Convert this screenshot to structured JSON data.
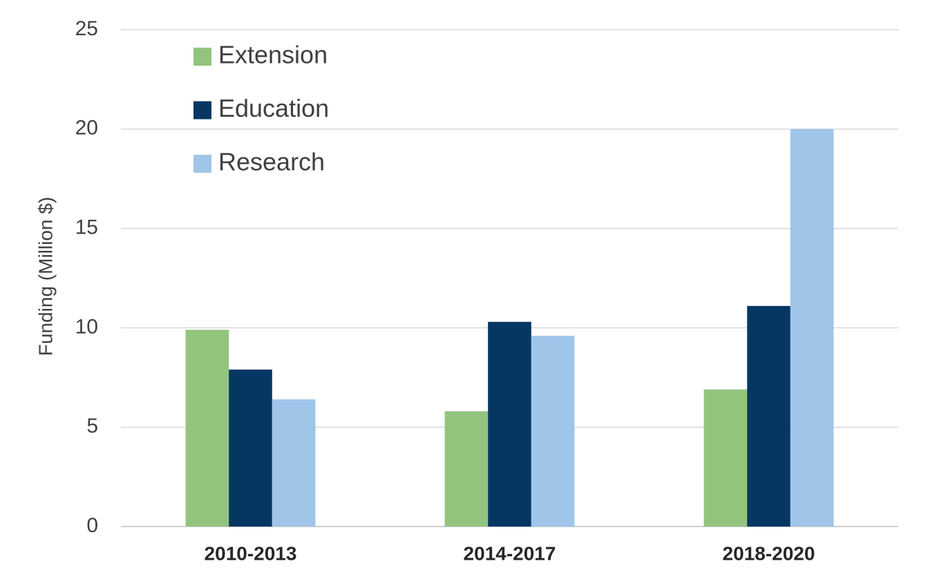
{
  "chart_data": {
    "type": "bar",
    "y_label": "Funding  (Million $)",
    "categories": [
      "2010-2013",
      "2014-2017",
      "2018-2020"
    ],
    "series": [
      {
        "name": "Extension",
        "color": "#93c47d",
        "values": [
          9.9,
          5.8,
          6.9
        ]
      },
      {
        "name": "Education",
        "color": "#063763",
        "values": [
          7.9,
          10.3,
          11.1
        ]
      },
      {
        "name": "Research",
        "color": "#9fc5e8",
        "values": [
          6.4,
          9.6,
          20.0
        ]
      }
    ],
    "ylim": [
      0,
      25
    ],
    "yticks": [
      0,
      5,
      10,
      15,
      20,
      25
    ],
    "grid": true,
    "legend": "upper left"
  }
}
